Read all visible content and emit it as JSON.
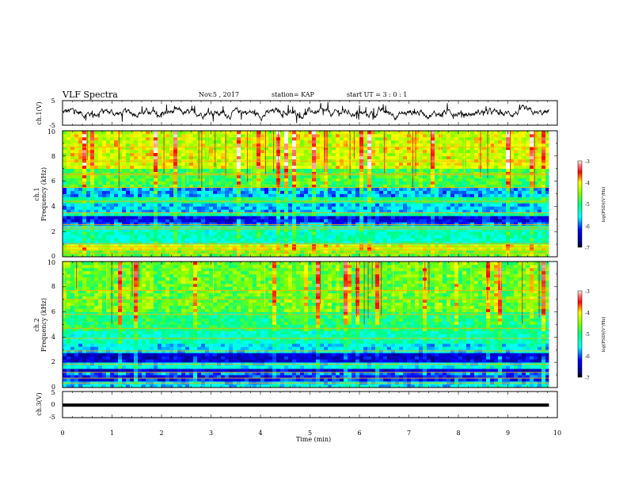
{
  "header": {
    "title": "VLF Spectra",
    "date": "Nov.5 , 2017",
    "station": "station= KAP",
    "start": "start UT = 3 : 0 : 1"
  },
  "chart_data": [
    {
      "type": "line",
      "name": "ch1-waveform",
      "ylabel": "ch.1(V)",
      "xlim": [
        0,
        10
      ],
      "ylim": [
        -5,
        5
      ],
      "yticks": [
        "5",
        "-5"
      ],
      "line_color": "#000000",
      "description_values": {
        "mean": 0,
        "approx_amplitude": 2
      }
    },
    {
      "type": "heatmap",
      "name": "ch1-spectrogram",
      "ylabel": "ch.1",
      "ylabel2": "Frequency (kHz)",
      "xlim": [
        0,
        10
      ],
      "ylim": [
        0,
        10
      ],
      "yticks": [
        "0",
        "2",
        "4",
        "6",
        "8",
        "10"
      ],
      "data_extent_x": [
        0,
        9.83
      ],
      "bands": [
        {
          "f0": 0.0,
          "f1": 0.4,
          "level": -4.6
        },
        {
          "f0": 0.4,
          "f1": 1.1,
          "level": -4.2
        },
        {
          "f0": 1.1,
          "f1": 2.4,
          "level": -5.3
        },
        {
          "f0": 2.4,
          "f1": 2.7,
          "level": -6.0
        },
        {
          "f0": 2.7,
          "f1": 3.2,
          "level": -6.3
        },
        {
          "f0": 3.2,
          "f1": 3.6,
          "level": -5.2
        },
        {
          "f0": 3.6,
          "f1": 4.2,
          "level": -5.7
        },
        {
          "f0": 4.2,
          "f1": 4.8,
          "level": -5.1
        },
        {
          "f0": 4.8,
          "f1": 5.4,
          "level": -5.8
        },
        {
          "f0": 5.4,
          "f1": 7.0,
          "level": -4.8
        },
        {
          "f0": 7.0,
          "f1": 10.0,
          "level": -4.2
        }
      ],
      "lines_khz": [
        0.3,
        0.55,
        0.8,
        1.05,
        2.2,
        2.35,
        2.55,
        3.5,
        4.4,
        5.5,
        6.5,
        6.6,
        7.6,
        8.7
      ],
      "colorbar": {
        "label": "log(PSD)(V²/Hz)",
        "range": [
          -7,
          -3
        ],
        "ticks": [
          "-3",
          "-4",
          "-5",
          "-6",
          "-7"
        ]
      }
    },
    {
      "type": "heatmap",
      "name": "ch2-spectrogram",
      "ylabel": "ch.2",
      "ylabel2": "Frequency (kHz)",
      "xlim": [
        0,
        10
      ],
      "ylim": [
        0,
        10
      ],
      "yticks": [
        "0",
        "2",
        "4",
        "6",
        "8",
        "10"
      ],
      "data_extent_x": [
        0,
        9.83
      ],
      "bands": [
        {
          "f0": 0.0,
          "f1": 0.6,
          "level": -5.6
        },
        {
          "f0": 0.6,
          "f1": 0.9,
          "level": -6.2
        },
        {
          "f0": 0.9,
          "f1": 1.3,
          "level": -5.9
        },
        {
          "f0": 1.3,
          "f1": 1.6,
          "level": -6.4
        },
        {
          "f0": 1.6,
          "f1": 2.0,
          "level": -5.5
        },
        {
          "f0": 2.0,
          "f1": 2.8,
          "level": -6.4
        },
        {
          "f0": 2.8,
          "f1": 3.5,
          "level": -5.6
        },
        {
          "f0": 3.5,
          "f1": 4.5,
          "level": -5.3
        },
        {
          "f0": 4.5,
          "f1": 6.0,
          "level": -5.0
        },
        {
          "f0": 6.0,
          "f1": 10.0,
          "level": -4.6
        }
      ],
      "lines_khz": [
        0.35,
        0.75,
        1.2,
        1.85,
        2.9,
        3.9,
        4.7,
        5.8,
        7.0,
        7.7
      ],
      "colorbar": {
        "label": "log(PSD)(V²/Hz)",
        "range": [
          -7,
          -3
        ],
        "ticks": [
          "-3",
          "-4",
          "-5",
          "-6",
          "-7"
        ]
      }
    },
    {
      "type": "line",
      "name": "ch3-waveform",
      "ylabel": "ch.3(V)",
      "xlim": [
        0,
        10
      ],
      "ylim": [
        -5,
        5
      ],
      "yticks": [
        "5",
        "0",
        "-5"
      ],
      "value": -0.2,
      "line_color": "#000000"
    }
  ],
  "xaxis": {
    "label": "Time (min)",
    "ticks": [
      "0",
      "1",
      "2",
      "3",
      "4",
      "5",
      "6",
      "7",
      "8",
      "9",
      "10"
    ]
  }
}
